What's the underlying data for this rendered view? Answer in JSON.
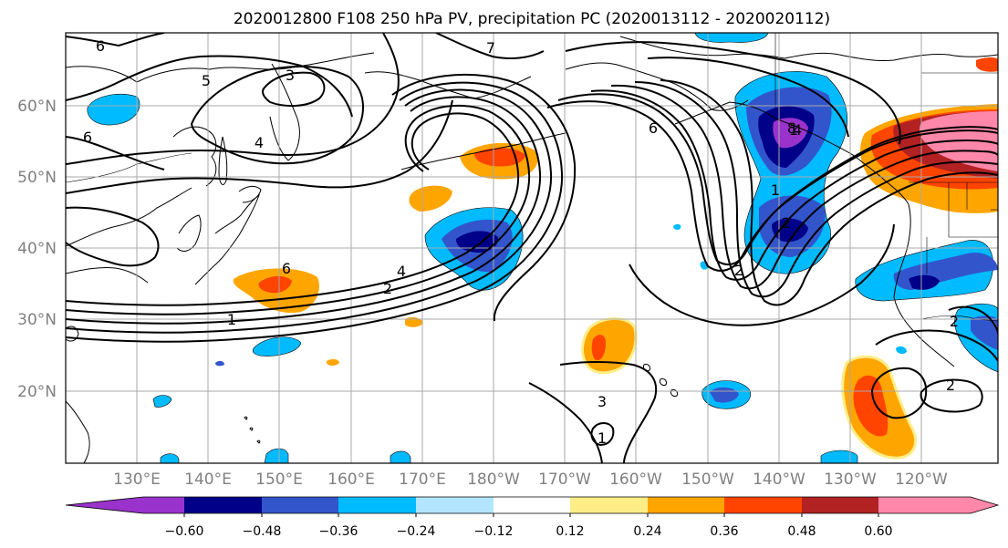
{
  "title": "2020012800 F108 250 hPa PV, precipitation PC (2020013112 - 2020020112)",
  "map": {
    "lat_ticks": [
      "60°N",
      "50°N",
      "40°N",
      "30°N",
      "20°N"
    ],
    "lon_ticks": [
      "130°E",
      "140°E",
      "150°E",
      "160°E",
      "170°E",
      "180°W",
      "170°W",
      "160°W",
      "150°W",
      "140°W",
      "130°W",
      "120°W"
    ],
    "contour_labels": [
      "6",
      "5",
      "3",
      "4",
      "6",
      "7",
      "6",
      "4",
      "2",
      "1",
      "6",
      "4",
      "2",
      "1",
      "3",
      "1",
      "2",
      "2",
      "1",
      "2",
      "8"
    ],
    "colors": {
      "frame": "#000000",
      "grid": "#a8a8a8",
      "coast": "#000000",
      "contour": "#000000"
    }
  },
  "colorbar": {
    "labels": [
      "−0.60",
      "−0.48",
      "−0.36",
      "−0.24",
      "−0.12",
      "0.12",
      "0.24",
      "0.36",
      "0.48",
      "0.60"
    ],
    "colors": [
      "#9933cc",
      "#000088",
      "#3355cc",
      "#00bbff",
      "#b3e5ff",
      "#ffffff",
      "#ffee88",
      "#ffa500",
      "#ff4400",
      "#b22222",
      "#ff88aa"
    ]
  }
}
